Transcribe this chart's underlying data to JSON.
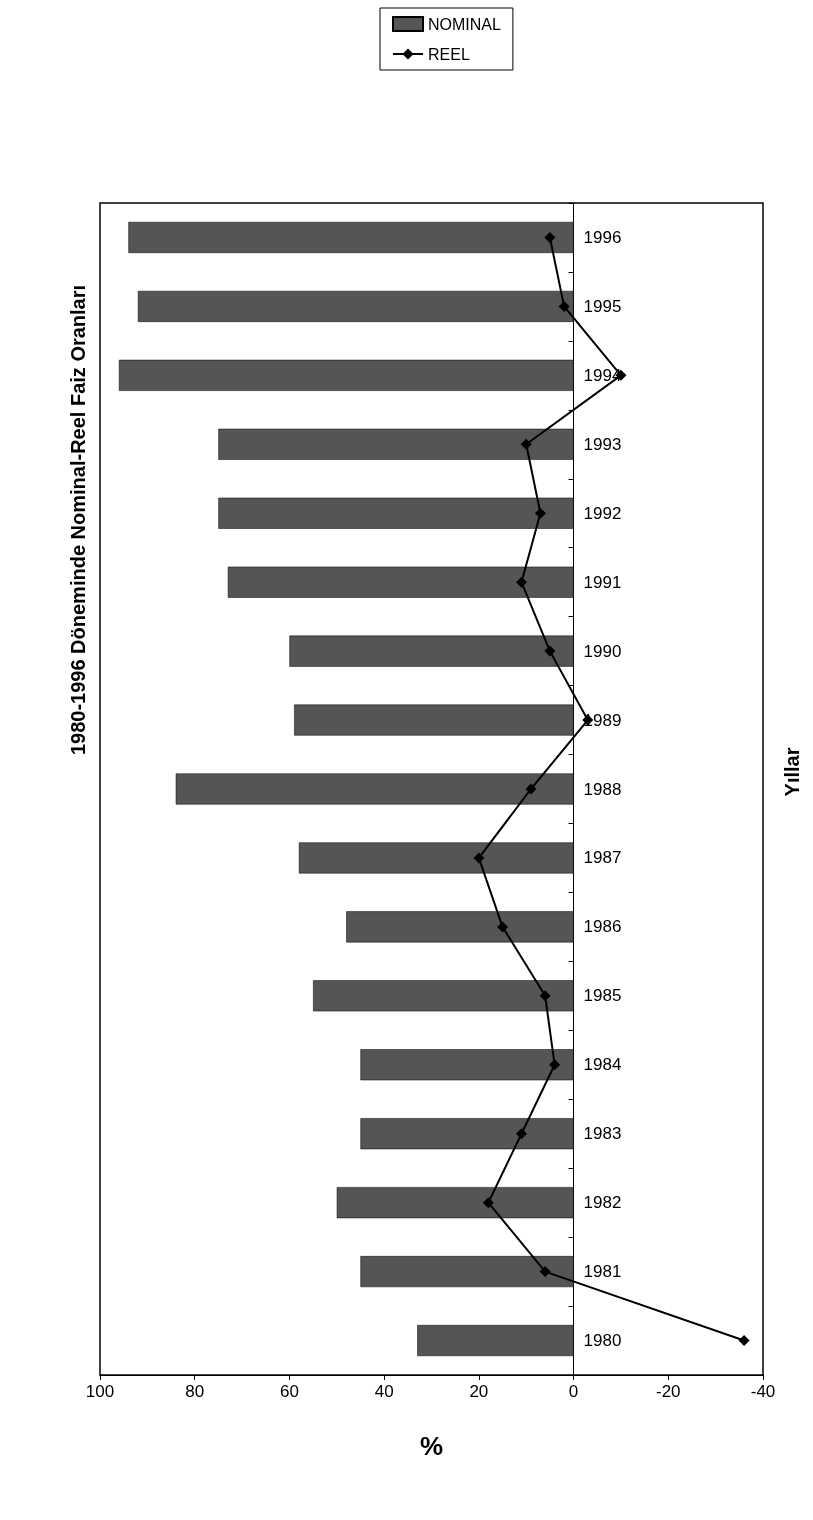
{
  "chart_data": {
    "type": "bar",
    "orientation": "horizontal",
    "title": "1980-1996 Döneminde Nominal-Reel Faiz Oranları",
    "xlabel": "%",
    "ylabel": "Yıllar",
    "categories": [
      "1996",
      "1995",
      "1994",
      "1993",
      "1992",
      "1991",
      "1990",
      "1989",
      "1988",
      "1987",
      "1986",
      "1985",
      "1984",
      "1983",
      "1982",
      "1981",
      "1980"
    ],
    "series": [
      {
        "name": "NOMINAL",
        "color": "#555555",
        "values": [
          94,
          92,
          96,
          75,
          75,
          73,
          60,
          59,
          84,
          58,
          48,
          55,
          45,
          45,
          50,
          45,
          33
        ]
      },
      {
        "name": "REEL",
        "type": "line",
        "color": "#000000",
        "marker": "diamond",
        "values": [
          5,
          2,
          -10,
          10,
          7,
          11,
          5,
          -3,
          9,
          20,
          15,
          6,
          4,
          11,
          18,
          6,
          -36
        ]
      }
    ],
    "xlim": [
      100,
      -40
    ],
    "xticks": [
      100,
      80,
      60,
      40,
      20,
      0,
      -20,
      -40
    ],
    "grid": false,
    "legend": "top"
  }
}
